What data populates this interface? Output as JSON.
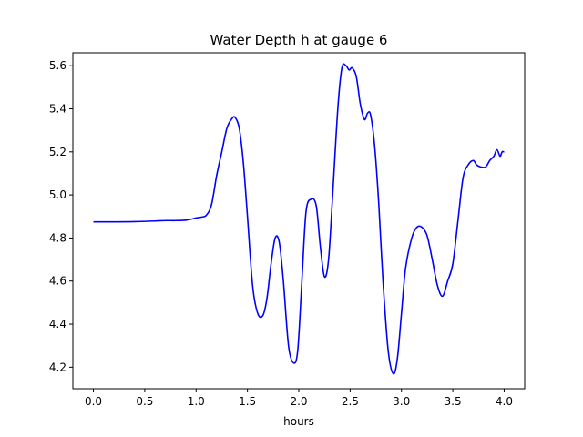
{
  "chart_data": {
    "type": "line",
    "title": "Water Depth h at gauge 6",
    "xlabel": "hours",
    "ylabel": "",
    "xlim": [
      -0.2,
      4.2
    ],
    "ylim": [
      4.1,
      5.66
    ],
    "xticks": [
      0.0,
      0.5,
      1.0,
      1.5,
      2.0,
      2.5,
      3.0,
      3.5,
      4.0
    ],
    "xtick_labels": [
      "0.0",
      "0.5",
      "1.0",
      "1.5",
      "2.0",
      "2.5",
      "3.0",
      "3.5",
      "4.0"
    ],
    "yticks": [
      4.2,
      4.4,
      4.6,
      4.8,
      5.0,
      5.2,
      5.4,
      5.6
    ],
    "ytick_labels": [
      "4.2",
      "4.4",
      "4.6",
      "4.8",
      "5.0",
      "5.2",
      "5.4",
      "5.6"
    ],
    "grid": false,
    "series": [
      {
        "color": "#0000ff",
        "x": [
          0.0,
          0.2,
          0.4,
          0.6,
          0.7,
          0.8,
          0.9,
          1.0,
          1.05,
          1.1,
          1.15,
          1.2,
          1.25,
          1.3,
          1.35,
          1.38,
          1.42,
          1.46,
          1.5,
          1.55,
          1.6,
          1.65,
          1.69,
          1.73,
          1.77,
          1.81,
          1.85,
          1.9,
          1.95,
          1.99,
          2.03,
          2.07,
          2.12,
          2.17,
          2.21,
          2.25,
          2.29,
          2.33,
          2.38,
          2.42,
          2.46,
          2.49,
          2.52,
          2.56,
          2.6,
          2.64,
          2.67,
          2.7,
          2.74,
          2.78,
          2.82,
          2.87,
          2.92,
          2.96,
          3.0,
          3.04,
          3.1,
          3.15,
          3.2,
          3.25,
          3.3,
          3.35,
          3.4,
          3.45,
          3.5,
          3.55,
          3.6,
          3.65,
          3.7,
          3.73,
          3.77,
          3.82,
          3.86,
          3.9,
          3.93,
          3.96,
          3.98,
          4.0
        ],
        "y": [
          4.875,
          4.875,
          4.876,
          4.879,
          4.881,
          4.881,
          4.883,
          4.893,
          4.897,
          4.906,
          4.955,
          5.09,
          5.2,
          5.31,
          5.355,
          5.36,
          5.31,
          5.15,
          4.9,
          4.58,
          4.45,
          4.44,
          4.52,
          4.68,
          4.8,
          4.78,
          4.6,
          4.3,
          4.22,
          4.28,
          4.6,
          4.92,
          4.98,
          4.95,
          4.76,
          4.62,
          4.7,
          5.0,
          5.4,
          5.59,
          5.6,
          5.58,
          5.59,
          5.55,
          5.42,
          5.35,
          5.38,
          5.37,
          5.22,
          4.95,
          4.6,
          4.28,
          4.17,
          4.24,
          4.45,
          4.66,
          4.8,
          4.85,
          4.85,
          4.81,
          4.7,
          4.58,
          4.53,
          4.6,
          4.68,
          4.88,
          5.08,
          5.14,
          5.16,
          5.14,
          5.13,
          5.13,
          5.16,
          5.18,
          5.21,
          5.18,
          5.2,
          5.2
        ]
      }
    ]
  }
}
